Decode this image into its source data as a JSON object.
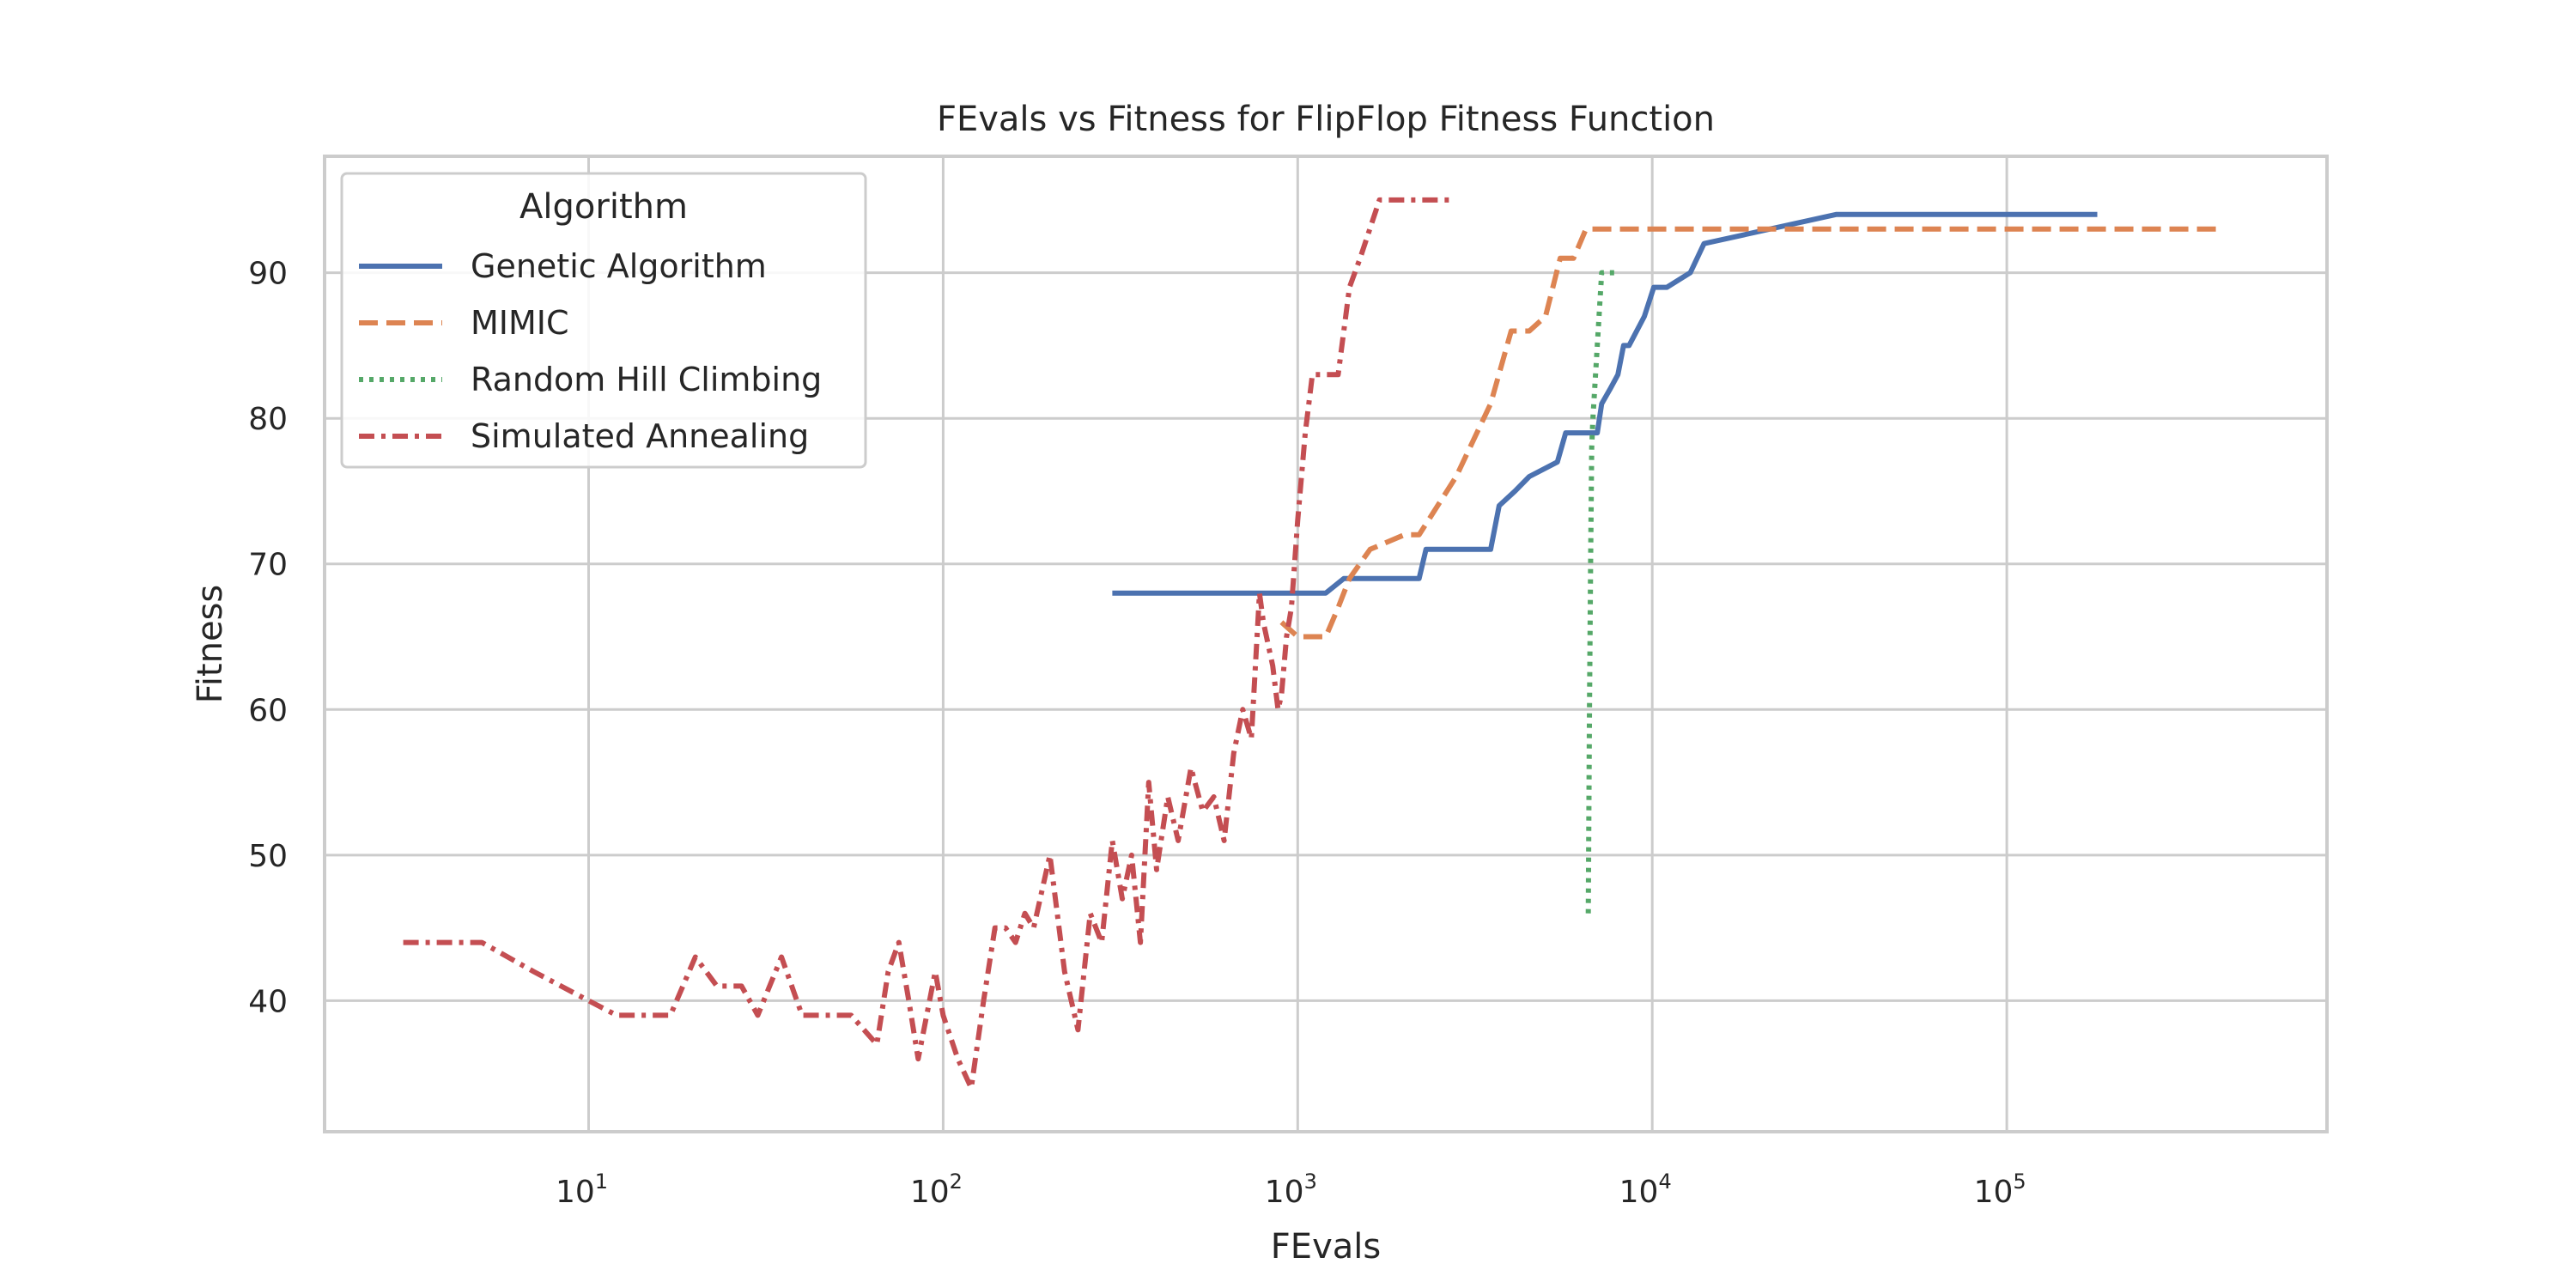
{
  "chart_data": {
    "type": "line",
    "title": "FEvals vs Fitness for FlipFlop Fitness Function",
    "xlabel": "FEvals",
    "ylabel": "Fitness",
    "xscale": "log",
    "xlim": [
      1.8,
      800000
    ],
    "ylim": [
      31,
      98
    ],
    "x_ticks": [
      {
        "value": 10,
        "base": "10",
        "exp": "1"
      },
      {
        "value": 100,
        "base": "10",
        "exp": "2"
      },
      {
        "value": 1000,
        "base": "10",
        "exp": "3"
      },
      {
        "value": 10000,
        "base": "10",
        "exp": "4"
      },
      {
        "value": 100000,
        "base": "10",
        "exp": "5"
      }
    ],
    "y_ticks": [
      40,
      50,
      60,
      70,
      80,
      90
    ],
    "grid": true,
    "legend": {
      "title": "Algorithm",
      "position": "top-left"
    },
    "series": [
      {
        "name": "Genetic Algorithm",
        "color": "#4c72b0",
        "dash": "solid",
        "x": [
          300,
          1200,
          1350,
          1500,
          2200,
          2300,
          3500,
          3700,
          4100,
          4500,
          5400,
          5700,
          7000,
          7200,
          7600,
          8000,
          8300,
          8600,
          9500,
          10100,
          11000,
          12800,
          14000,
          33000,
          180000
        ],
        "y": [
          68,
          68,
          69,
          69,
          69,
          71,
          71,
          74,
          75,
          76,
          77,
          79,
          79,
          81,
          82,
          83,
          85,
          85,
          87,
          89,
          89,
          90,
          92,
          94,
          94
        ]
      },
      {
        "name": "MIMIC",
        "color": "#dd8452",
        "dash": "dashed",
        "x": [
          900,
          1000,
          1200,
          1300,
          1400,
          1600,
          2000,
          2200,
          2800,
          3500,
          4000,
          4500,
          5000,
          5500,
          6000,
          6500,
          10000,
          50000,
          400000
        ],
        "y": [
          66,
          65,
          65,
          67,
          69,
          71,
          72,
          72,
          76,
          81,
          86,
          86,
          87,
          91,
          91,
          93,
          93,
          93,
          93
        ]
      },
      {
        "name": "Random Hill Climbing",
        "color": "#55a868",
        "dash": "dotted",
        "x": [
          6600,
          6650,
          6700,
          6750,
          6800,
          7000,
          7200,
          7500,
          8000
        ],
        "y": [
          46,
          60,
          70,
          78,
          80,
          85,
          90,
          90,
          90
        ]
      },
      {
        "name": "Simulated Annealing",
        "color": "#c44e52",
        "dash": "dashdot",
        "x": [
          3,
          5,
          7,
          10,
          12,
          17,
          20,
          23,
          27,
          30,
          35,
          40,
          45,
          55,
          65,
          70,
          75,
          80,
          85,
          95,
          100,
          110,
          120,
          130,
          140,
          150,
          160,
          170,
          180,
          200,
          220,
          240,
          260,
          280,
          300,
          320,
          340,
          360,
          380,
          400,
          430,
          460,
          500,
          540,
          580,
          620,
          660,
          700,
          740,
          780,
          800,
          850,
          880,
          900,
          930,
          960,
          1000,
          1050,
          1100,
          1200,
          1300,
          1400,
          1500,
          1700,
          2000,
          2700
        ],
        "y": [
          44,
          44,
          42,
          40,
          39,
          39,
          43,
          41,
          41,
          39,
          43,
          39,
          39,
          39,
          37,
          42,
          44,
          40,
          36,
          42,
          39,
          36,
          34,
          40,
          45,
          45,
          44,
          46,
          45,
          50,
          42,
          38,
          46,
          44,
          51,
          47,
          50,
          44,
          55,
          49,
          54,
          51,
          56,
          53,
          54,
          51,
          57,
          60,
          58,
          68,
          66,
          63,
          60,
          61,
          65,
          67,
          73,
          79,
          83,
          83,
          83,
          89,
          91,
          95,
          95,
          95
        ]
      }
    ]
  }
}
